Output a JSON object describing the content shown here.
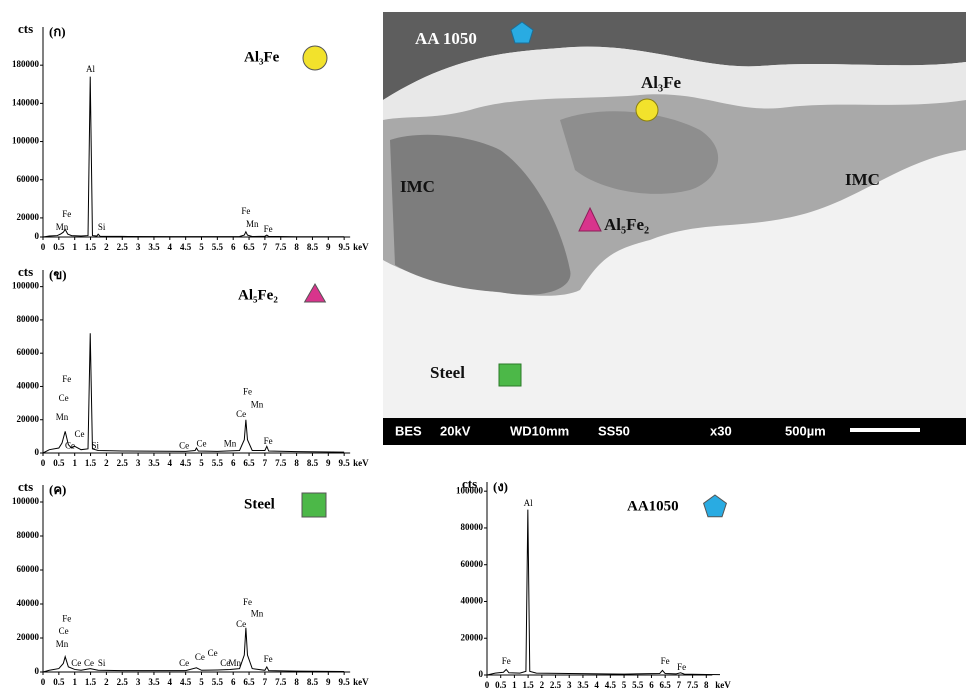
{
  "chart_data": [
    {
      "type": "line",
      "panel_label": "(ก)",
      "y_label": "cts",
      "x_label": "keV",
      "legend_label": "Al₃Fe",
      "marker": "circle",
      "marker_color": "#f2e22c",
      "color": "#000000",
      "xlim": [
        0,
        10
      ],
      "ylim": [
        0,
        220000
      ],
      "xticks": [
        0,
        0.5,
        1,
        1.5,
        2,
        2.5,
        3,
        3.5,
        4,
        4.5,
        5,
        5.5,
        6,
        6.5,
        7,
        7.5,
        8,
        8.5,
        9,
        9.5
      ],
      "yticks": [
        0,
        20000,
        60000,
        100000,
        140000,
        180000
      ],
      "x": [
        0,
        0.2,
        0.45,
        0.55,
        0.64,
        0.7,
        0.78,
        0.9,
        1.2,
        1.42,
        1.49,
        1.56,
        1.7,
        1.74,
        1.8,
        2.5,
        4,
        6.2,
        6.35,
        6.4,
        6.45,
        6.6,
        7.0,
        7.06,
        7.12,
        8,
        9.5
      ],
      "values": [
        0,
        1000,
        1500,
        3000,
        5000,
        8000,
        3000,
        1500,
        1000,
        1500,
        168000,
        1500,
        1000,
        3000,
        800,
        600,
        400,
        500,
        2000,
        5500,
        2000,
        500,
        800,
        2000,
        600,
        300,
        200
      ],
      "peak_labels": [
        {
          "text": "Fe",
          "x": 0.75,
          "y": 23000
        },
        {
          "text": "Mn",
          "x": 0.6,
          "y": 9400
        },
        {
          "text": "Al",
          "x": 1.5,
          "y": 175000
        },
        {
          "text": "Si",
          "x": 1.85,
          "y": 9400
        },
        {
          "text": "Fe",
          "x": 6.4,
          "y": 26000
        },
        {
          "text": "Mn",
          "x": 6.6,
          "y": 12500
        },
        {
          "text": "Fe",
          "x": 7.1,
          "y": 7300
        }
      ]
    },
    {
      "type": "line",
      "panel_label": "(ข)",
      "y_label": "cts",
      "x_label": "keV",
      "legend_label": "Al₅Fe₂",
      "marker": "triangle",
      "marker_color": "#d8348c",
      "color": "#000000",
      "xlim": [
        0,
        10
      ],
      "ylim": [
        0,
        110000
      ],
      "xticks": [
        0,
        0.5,
        1,
        1.5,
        2,
        2.5,
        3,
        3.5,
        4,
        4.5,
        5,
        5.5,
        6,
        6.5,
        7,
        7.5,
        8,
        8.5,
        9,
        9.5
      ],
      "yticks": [
        0,
        20000,
        40000,
        60000,
        80000,
        100000
      ],
      "x": [
        0,
        0.2,
        0.5,
        0.6,
        0.7,
        0.8,
        0.9,
        1.0,
        1.2,
        1.42,
        1.49,
        1.56,
        1.74,
        2.5,
        4.5,
        4.8,
        4.84,
        4.9,
        5.5,
        6.2,
        6.35,
        6.4,
        6.45,
        6.6,
        7.0,
        7.06,
        7.12,
        8,
        9.5
      ],
      "values": [
        0,
        2000,
        3000,
        6000,
        13000,
        5000,
        3000,
        4000,
        2000,
        2500,
        72000,
        2500,
        1500,
        1200,
        1000,
        1500,
        3000,
        1200,
        1000,
        1500,
        8000,
        20000,
        8000,
        1500,
        1500,
        4000,
        1200,
        800,
        500
      ],
      "peak_labels": [
        {
          "text": "Fe",
          "x": 0.75,
          "y": 44000
        },
        {
          "text": "Ce",
          "x": 0.65,
          "y": 32500
        },
        {
          "text": "Mn",
          "x": 0.6,
          "y": 21000
        },
        {
          "text": "Ce",
          "x": 1.15,
          "y": 11000
        },
        {
          "text": "Ce",
          "x": 0.85,
          "y": 4000
        },
        {
          "text": "Si",
          "x": 1.65,
          "y": 4000
        },
        {
          "text": "Ce",
          "x": 4.45,
          "y": 4000
        },
        {
          "text": "Ce",
          "x": 5.0,
          "y": 5000
        },
        {
          "text": "Mn",
          "x": 5.9,
          "y": 5000
        },
        {
          "text": "Ce",
          "x": 6.25,
          "y": 23000
        },
        {
          "text": "Fe",
          "x": 6.45,
          "y": 36500
        },
        {
          "text": "Mn",
          "x": 6.75,
          "y": 28500
        },
        {
          "text": "Fe",
          "x": 7.1,
          "y": 6500
        }
      ]
    },
    {
      "type": "line",
      "panel_label": "(ค)",
      "y_label": "cts",
      "x_label": "keV",
      "legend_label": "Steel",
      "marker": "square",
      "marker_color": "#4cb848",
      "color": "#000000",
      "xlim": [
        0,
        10
      ],
      "ylim": [
        0,
        110000
      ],
      "xticks": [
        0,
        0.5,
        1,
        1.5,
        2,
        2.5,
        3,
        3.5,
        4,
        4.5,
        5,
        5.5,
        6,
        6.5,
        7,
        7.5,
        8,
        8.5,
        9,
        9.5
      ],
      "yticks": [
        0,
        20000,
        40000,
        60000,
        80000,
        100000
      ],
      "x": [
        0,
        0.2,
        0.5,
        0.64,
        0.7,
        0.8,
        1.0,
        1.2,
        1.49,
        1.74,
        2.5,
        4.5,
        4.84,
        5.0,
        5.5,
        5.9,
        6.2,
        6.35,
        6.4,
        6.45,
        6.6,
        7.0,
        7.06,
        7.12,
        8,
        9.5
      ],
      "values": [
        0,
        1000,
        2000,
        5000,
        9000,
        3000,
        1500,
        1000,
        2000,
        1000,
        800,
        800,
        2500,
        1000,
        1200,
        1500,
        2000,
        10000,
        26000,
        10000,
        2000,
        1000,
        3000,
        800,
        500,
        300
      ],
      "peak_labels": [
        {
          "text": "Fe",
          "x": 0.75,
          "y": 31000
        },
        {
          "text": "Ce",
          "x": 0.65,
          "y": 23500
        },
        {
          "text": "Mn",
          "x": 0.6,
          "y": 16000
        },
        {
          "text": "Ce",
          "x": 1.05,
          "y": 4700
        },
        {
          "text": "Ce",
          "x": 1.45,
          "y": 4700
        },
        {
          "text": "Si",
          "x": 1.85,
          "y": 4700
        },
        {
          "text": "Ce",
          "x": 4.45,
          "y": 4700
        },
        {
          "text": "Ce",
          "x": 4.95,
          "y": 8200
        },
        {
          "text": "Ce",
          "x": 5.35,
          "y": 10600
        },
        {
          "text": "Ce",
          "x": 5.75,
          "y": 4700
        },
        {
          "text": "Mn",
          "x": 6.05,
          "y": 4700
        },
        {
          "text": "Ce",
          "x": 6.25,
          "y": 27600
        },
        {
          "text": "Fe",
          "x": 6.45,
          "y": 40600
        },
        {
          "text": "Mn",
          "x": 6.75,
          "y": 34000
        },
        {
          "text": "Fe",
          "x": 7.1,
          "y": 7000
        }
      ]
    },
    {
      "type": "line",
      "panel_label": "(ง)",
      "y_label": "cts",
      "x_label": "keV",
      "legend_label": "AA1050",
      "marker": "pentagon",
      "marker_color": "#29abe2",
      "color": "#000000",
      "xlim": [
        0,
        8.5
      ],
      "ylim": [
        0,
        105000
      ],
      "xticks": [
        0,
        0.5,
        1,
        1.5,
        2,
        2.5,
        3,
        3.5,
        4,
        4.5,
        5,
        5.5,
        6,
        6.5,
        7,
        7.5,
        8
      ],
      "yticks": [
        0,
        20000,
        40000,
        60000,
        80000,
        100000
      ],
      "x": [
        0,
        0.3,
        0.6,
        0.7,
        0.8,
        1.2,
        1.42,
        1.49,
        1.56,
        1.8,
        3,
        5,
        6.3,
        6.4,
        6.5,
        6.9,
        7.06,
        7.2,
        8,
        8.5
      ],
      "values": [
        0,
        1000,
        1500,
        3000,
        1200,
        1000,
        2000,
        90000,
        2000,
        1000,
        800,
        500,
        800,
        2500,
        800,
        600,
        1200,
        500,
        300,
        200
      ],
      "peak_labels": [
        {
          "text": "Al",
          "x": 1.5,
          "y": 93000
        },
        {
          "text": "Fe",
          "x": 0.7,
          "y": 7000
        },
        {
          "text": "Fe",
          "x": 6.5,
          "y": 7000
        },
        {
          "text": "Fe",
          "x": 7.1,
          "y": 3800
        }
      ]
    }
  ],
  "image": {
    "labels": [
      "AA 1050",
      "Al₃Fe",
      "IMC",
      "IMC",
      "Al₅Fe₂",
      "Steel"
    ],
    "info_bar": [
      "BES",
      "20kV",
      "WD10mm",
      "SS50",
      "x30",
      "500µm"
    ]
  }
}
